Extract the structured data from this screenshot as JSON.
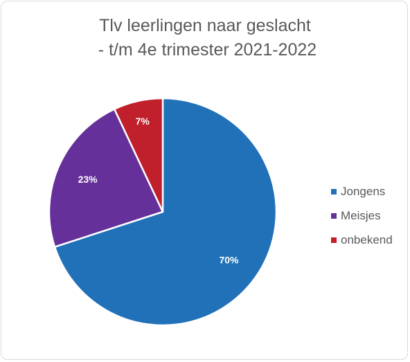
{
  "chart_data": {
    "type": "pie",
    "title_lines": [
      "Tlv leerlingen naar geslacht",
      " - t/m 4e trimester 2021-2022"
    ],
    "categories": [
      "Jongens",
      "Meisjes",
      "onbekend"
    ],
    "values": [
      70,
      23,
      7
    ],
    "data_labels": [
      "70%",
      "23%",
      "7%"
    ],
    "colors": [
      "#2171b8",
      "#66309a",
      "#c0202c"
    ],
    "legend_position": "right"
  }
}
